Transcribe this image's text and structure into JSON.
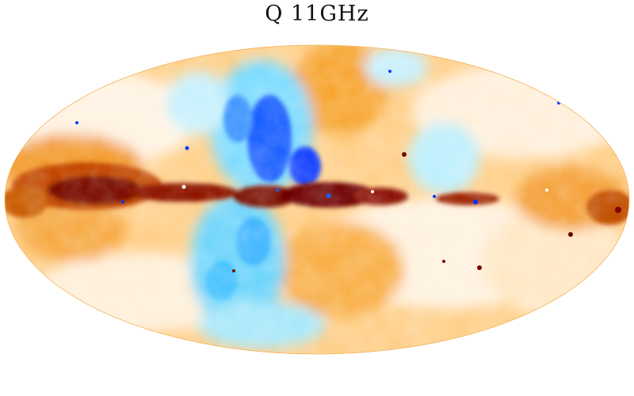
{
  "map": {
    "title": "Q  11GHz",
    "projection": "mollweide",
    "colormap": {
      "strong_negative": "#0027ff",
      "negative": "#16c8ff",
      "light_negative": "#bff4ff",
      "neutral": "#fff6ea",
      "positive": "#ffc36a",
      "strong_positive": "#f07800",
      "saturated_positive": "#7a0700"
    },
    "background": "#ffffff"
  }
}
